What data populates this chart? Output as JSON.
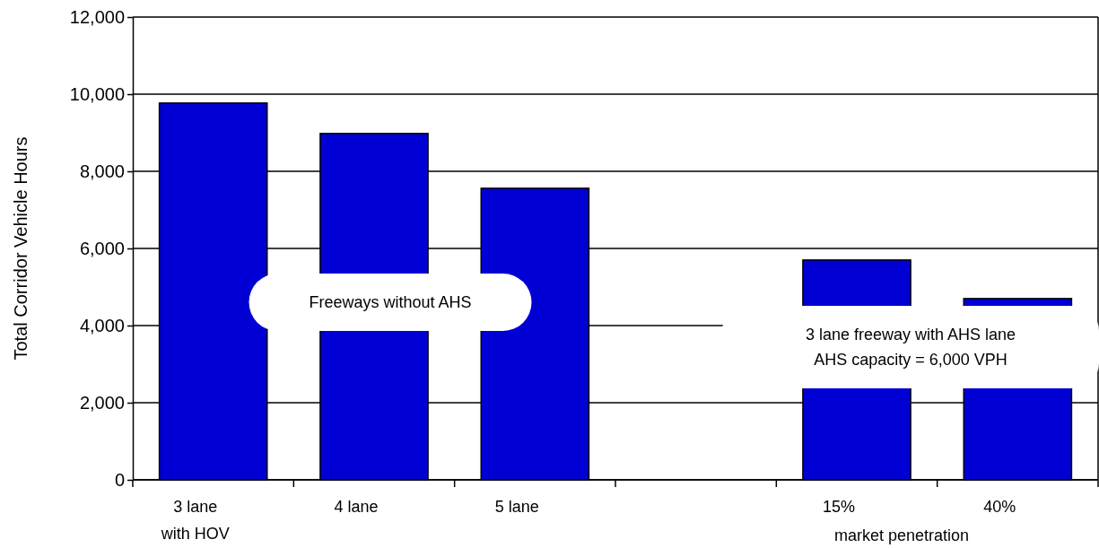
{
  "chart_data": {
    "type": "bar",
    "ylabel": "Total Corridor Vehicle Hours",
    "categories": [
      "3 lane\nwith HOV",
      "4 lane",
      "5 lane",
      null,
      "15%",
      "40%"
    ],
    "values": [
      9770,
      8980,
      7560,
      null,
      5700,
      4700
    ],
    "color": "#0000d4",
    "ylim": [
      0,
      12000
    ],
    "yticks": [
      {
        "value": 0,
        "label": "0"
      },
      {
        "value": 2000,
        "label": "2,000"
      },
      {
        "value": 4000,
        "label": "4,000"
      },
      {
        "value": 6000,
        "label": "6,000"
      },
      {
        "value": 8000,
        "label": "8,000"
      },
      {
        "value": 10000,
        "label": "10,000"
      },
      {
        "value": 12000,
        "label": "12,000"
      }
    ],
    "grid": "y",
    "annotations": [
      "Freeways without AHS",
      "3 lane freeway with AHS lane\nAHS capacity = 6,000 VPH",
      "market penetration"
    ]
  }
}
